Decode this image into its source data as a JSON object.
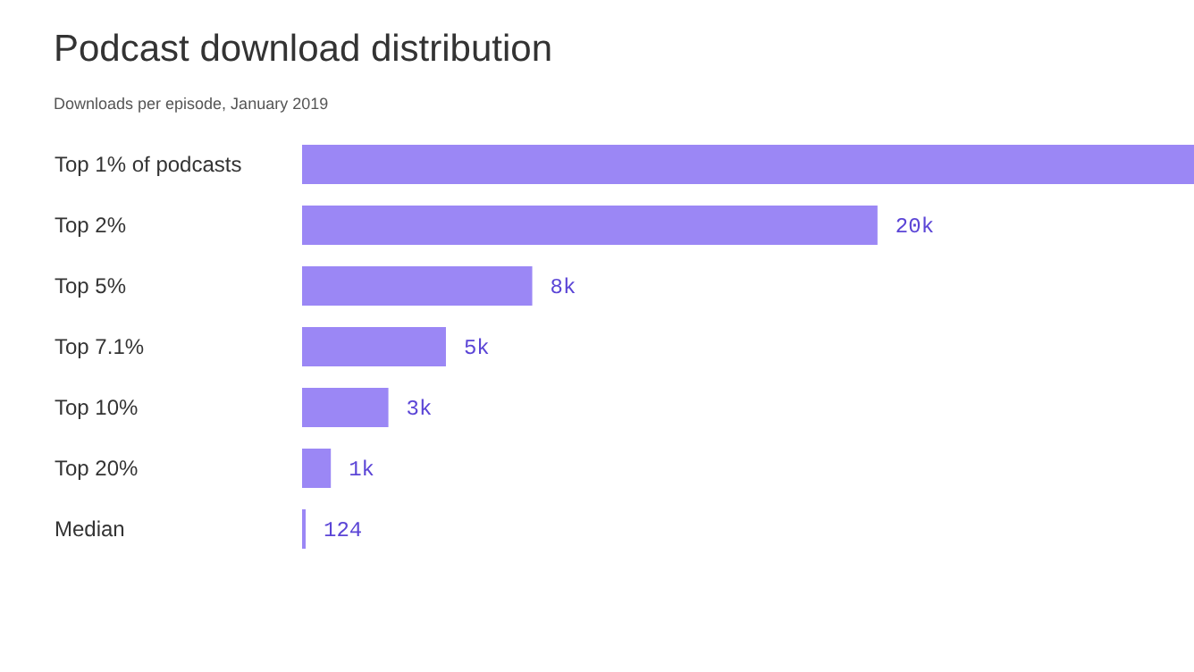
{
  "chart_data": {
    "type": "bar",
    "orientation": "horizontal",
    "title": "Podcast download distribution",
    "subtitle": "Downloads per episode, January 2019",
    "categories": [
      "Top 1% of podcasts",
      "Top 2%",
      "Top 5%",
      "Top 7.1%",
      "Top 10%",
      "Top 20%",
      "Median"
    ],
    "values": [
      31000,
      20000,
      8000,
      5000,
      3000,
      1000,
      124
    ],
    "value_labels": [
      null,
      "20k",
      "8k",
      "5k",
      "3k",
      "1k",
      "124"
    ],
    "color": "#9b87f5",
    "xlim": [
      0,
      31000
    ],
    "tick_labels": "y"
  }
}
